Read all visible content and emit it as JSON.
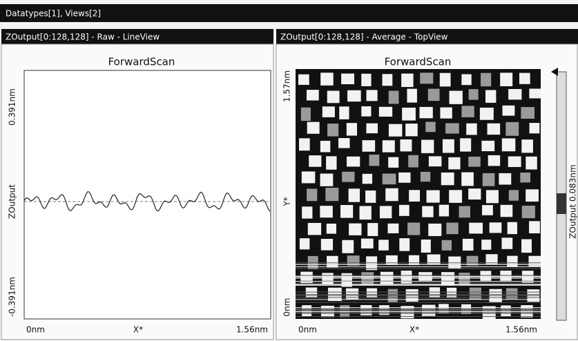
{
  "header": {
    "title": "Datatypes[1], Views[2]"
  },
  "panels": [
    {
      "title": "ZOutput[0:128,128] - Raw - LineView",
      "plot_title": "ForwardScan",
      "y_labels": [
        "0.391nm",
        "ZOutput",
        "-0.391nm"
      ],
      "x_labels": [
        "0nm",
        "X*",
        "1.56nm"
      ]
    },
    {
      "title": "ZOutput[0:128,128] - Average - TopView",
      "plot_title": "ForwardScan",
      "y_labels": [
        "1.57nm",
        "Y*",
        "0nm"
      ],
      "x_labels": [
        "0nm",
        "X*",
        "1.56nm"
      ],
      "colorbar_label": "ZOutput 0.083nm"
    }
  ]
}
